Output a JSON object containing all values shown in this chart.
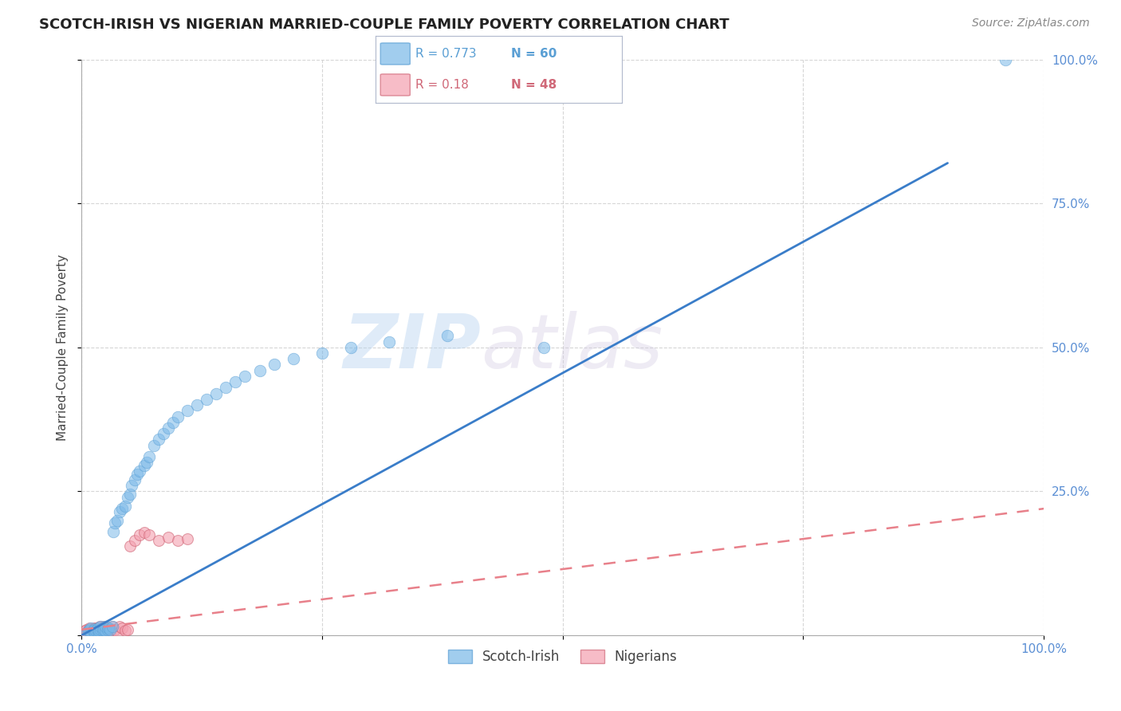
{
  "title": "SCOTCH-IRISH VS NIGERIAN MARRIED-COUPLE FAMILY POVERTY CORRELATION CHART",
  "source": "Source: ZipAtlas.com",
  "ylabel": "Married-Couple Family Poverty",
  "xlim": [
    0,
    1.0
  ],
  "ylim": [
    0,
    1.0
  ],
  "xticks": [
    0,
    0.25,
    0.5,
    0.75,
    1.0
  ],
  "xticklabels": [
    "0.0%",
    "",
    "",
    "",
    "100.0%"
  ],
  "yticks": [
    0,
    0.25,
    0.5,
    0.75,
    1.0
  ],
  "yticklabels": [
    "",
    "25.0%",
    "50.0%",
    "75.0%",
    "100.0%"
  ],
  "background_color": "#ffffff",
  "grid_color": "#cccccc",
  "watermark_text": "ZIP",
  "watermark_text2": "atlas",
  "scotch_irish_color": "#7ab8e8",
  "nigerian_color": "#f4a0b0",
  "scotch_irish_line_color": "#3a7dc9",
  "nigerian_line_color": "#e8808a",
  "scotch_irish_R": 0.773,
  "scotch_irish_N": 60,
  "nigerian_R": 0.18,
  "nigerian_N": 48,
  "tick_color": "#5b8fd4",
  "scotch_irish_x": [
    0.005,
    0.007,
    0.008,
    0.01,
    0.01,
    0.012,
    0.013,
    0.014,
    0.015,
    0.016,
    0.017,
    0.018,
    0.018,
    0.02,
    0.02,
    0.022,
    0.023,
    0.025,
    0.025,
    0.027,
    0.028,
    0.03,
    0.032,
    0.033,
    0.035,
    0.037,
    0.04,
    0.042,
    0.045,
    0.048,
    0.05,
    0.052,
    0.055,
    0.058,
    0.06,
    0.065,
    0.068,
    0.07,
    0.075,
    0.08,
    0.085,
    0.09,
    0.095,
    0.1,
    0.11,
    0.12,
    0.13,
    0.14,
    0.15,
    0.16,
    0.17,
    0.185,
    0.2,
    0.22,
    0.25,
    0.28,
    0.32,
    0.38,
    0.48,
    0.96
  ],
  "scotch_irish_y": [
    0.005,
    0.008,
    0.01,
    0.005,
    0.012,
    0.008,
    0.01,
    0.005,
    0.008,
    0.01,
    0.012,
    0.005,
    0.008,
    0.01,
    0.015,
    0.008,
    0.01,
    0.008,
    0.015,
    0.01,
    0.012,
    0.01,
    0.015,
    0.18,
    0.195,
    0.2,
    0.215,
    0.22,
    0.225,
    0.24,
    0.245,
    0.26,
    0.27,
    0.28,
    0.285,
    0.295,
    0.3,
    0.31,
    0.33,
    0.34,
    0.35,
    0.36,
    0.37,
    0.38,
    0.39,
    0.4,
    0.41,
    0.42,
    0.43,
    0.44,
    0.45,
    0.46,
    0.47,
    0.48,
    0.49,
    0.5,
    0.51,
    0.52,
    0.5,
    1.0
  ],
  "nigerian_x": [
    0.003,
    0.004,
    0.005,
    0.005,
    0.006,
    0.007,
    0.008,
    0.008,
    0.009,
    0.01,
    0.01,
    0.011,
    0.012,
    0.013,
    0.013,
    0.014,
    0.015,
    0.015,
    0.016,
    0.017,
    0.018,
    0.018,
    0.019,
    0.02,
    0.021,
    0.022,
    0.023,
    0.024,
    0.025,
    0.026,
    0.028,
    0.03,
    0.032,
    0.035,
    0.038,
    0.04,
    0.042,
    0.045,
    0.048,
    0.05,
    0.055,
    0.06,
    0.065,
    0.07,
    0.08,
    0.09,
    0.1,
    0.11
  ],
  "nigerian_y": [
    0.005,
    0.008,
    0.003,
    0.01,
    0.005,
    0.003,
    0.008,
    0.012,
    0.005,
    0.003,
    0.01,
    0.005,
    0.008,
    0.003,
    0.012,
    0.005,
    0.008,
    0.012,
    0.005,
    0.01,
    0.003,
    0.008,
    0.015,
    0.005,
    0.01,
    0.003,
    0.015,
    0.008,
    0.01,
    0.005,
    0.012,
    0.005,
    0.015,
    0.01,
    0.005,
    0.015,
    0.012,
    0.008,
    0.01,
    0.155,
    0.165,
    0.175,
    0.178,
    0.175,
    0.165,
    0.17,
    0.165,
    0.168
  ],
  "si_line_x": [
    0.0,
    0.9
  ],
  "si_line_y": [
    0.0,
    0.82
  ],
  "ng_line_x": [
    0.0,
    1.0
  ],
  "ng_line_y": [
    0.01,
    0.22
  ]
}
